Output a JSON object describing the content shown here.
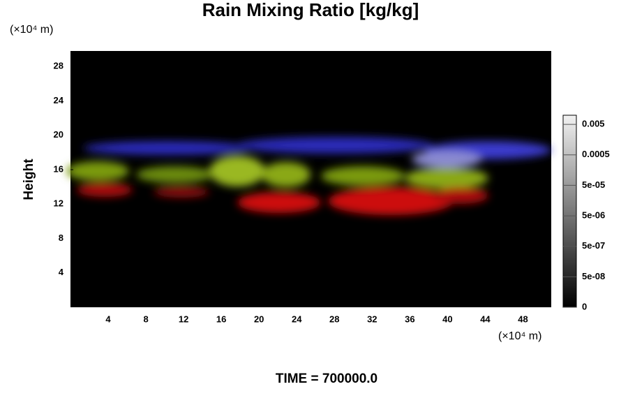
{
  "chart_data": {
    "type": "field",
    "title": "Rain Mixing Ratio [kg/kg]",
    "x_unit": "(×10⁴ m)",
    "y_unit": "(×10⁴ m)",
    "ylabel": "Height",
    "footer": "TIME = 700000.0",
    "xlim": [
      0,
      51
    ],
    "xticks": [
      4,
      8,
      12,
      16,
      20,
      24,
      28,
      32,
      36,
      40,
      44,
      48
    ],
    "ylim": [
      0,
      29.8
    ],
    "yticks": [
      4,
      8,
      12,
      16,
      20,
      24,
      28
    ],
    "colorbar": {
      "log": true,
      "clim": [
        5e-09,
        0.01
      ],
      "ticks": [
        0.005,
        0.0005,
        {
          "value": 5e-05,
          "label": "5e-05"
        },
        {
          "value": 5e-06,
          "label": "5e-06"
        },
        {
          "value": 5e-07,
          "label": "5e-07"
        },
        {
          "value": 5e-08,
          "label": "5e-08"
        },
        0
      ]
    }
  }
}
